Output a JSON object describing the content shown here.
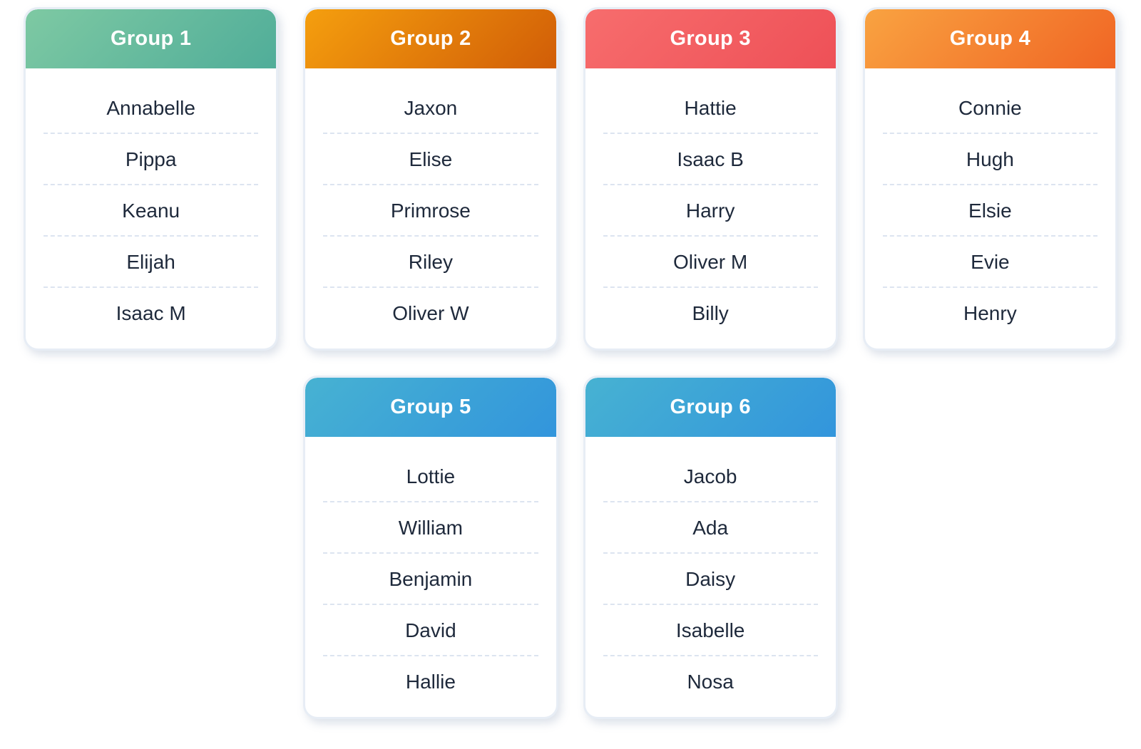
{
  "page": {
    "background": "#ffffff",
    "text_color": "#1e293b",
    "divider_color": "#dce4f0",
    "card_border_color": "#e7edf5"
  },
  "groups": [
    {
      "title": "Group 1",
      "header_colors": [
        "#7ec9a3",
        "#50ad99"
      ],
      "members": [
        "Annabelle",
        "Pippa",
        "Keanu",
        "Elijah",
        "Isaac M"
      ]
    },
    {
      "title": "Group 2",
      "header_colors": [
        "#f59f0e",
        "#d15d07"
      ],
      "members": [
        "Jaxon",
        "Elise",
        "Primrose",
        "Riley",
        "Oliver W"
      ]
    },
    {
      "title": "Group 3",
      "header_colors": [
        "#f76d6d",
        "#ee5057"
      ],
      "members": [
        "Hattie",
        "Isaac B",
        "Harry",
        "Oliver M",
        "Billy"
      ]
    },
    {
      "title": "Group 4",
      "header_colors": [
        "#f9a341",
        "#f06524"
      ],
      "members": [
        "Connie",
        "Hugh",
        "Elsie",
        "Evie",
        "Henry"
      ]
    },
    {
      "title": "Group 5",
      "header_colors": [
        "#47b2d2",
        "#3295dc"
      ],
      "members": [
        "Lottie",
        "William",
        "Benjamin",
        "David",
        "Hallie"
      ]
    },
    {
      "title": "Group 6",
      "header_colors": [
        "#47b2d2",
        "#3295dc"
      ],
      "members": [
        "Jacob",
        "Ada",
        "Daisy",
        "Isabelle",
        "Nosa"
      ]
    }
  ]
}
